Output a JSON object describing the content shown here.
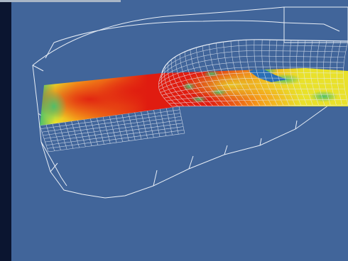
{
  "colors": {
    "viewport_background": "#41659a",
    "left_bar": "#0b1530",
    "top_strip": "#a9b6c6",
    "wireframe": "#e8eef6",
    "field_hot": "#e01c10",
    "field_warm": "#f6a21a",
    "field_mid": "#e9e12a",
    "field_cool": "#49bf6d",
    "field_cold": "#2a6fb5"
  },
  "scene": {
    "view": "3d-viewport",
    "objects": [
      {
        "name": "outer-hull-wireframe",
        "icon": "wireframe-box"
      },
      {
        "name": "dome-mesh-grid",
        "icon": "mesh-grid"
      },
      {
        "name": "lower-mesh-grid",
        "icon": "mesh-grid"
      },
      {
        "name": "temperature-field-slab",
        "icon": "color-field"
      }
    ]
  }
}
